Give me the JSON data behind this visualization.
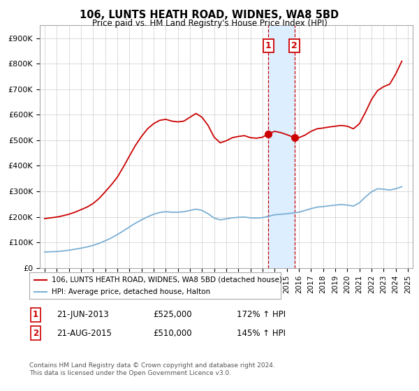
{
  "title": "106, LUNTS HEATH ROAD, WIDNES, WA8 5BD",
  "subtitle": "Price paid vs. HM Land Registry's House Price Index (HPI)",
  "ylabel_ticks": [
    "£0",
    "£100K",
    "£200K",
    "£300K",
    "£400K",
    "£500K",
    "£600K",
    "£700K",
    "£800K",
    "£900K"
  ],
  "ytick_values": [
    0,
    100000,
    200000,
    300000,
    400000,
    500000,
    600000,
    700000,
    800000,
    900000
  ],
  "ylim": [
    0,
    950000
  ],
  "xlim_start": 1994.6,
  "xlim_end": 2025.4,
  "legend_line1": "106, LUNTS HEATH ROAD, WIDNES, WA8 5BD (detached house)",
  "legend_line2": "HPI: Average price, detached house, Halton",
  "sale1_label": "1",
  "sale1_date": "21-JUN-2013",
  "sale1_price": "£525,000",
  "sale1_hpi": "172% ↑ HPI",
  "sale2_label": "2",
  "sale2_date": "21-AUG-2015",
  "sale2_price": "£510,000",
  "sale2_hpi": "145% ↑ HPI",
  "sale1_x": 2013.47,
  "sale1_y": 525000,
  "sale2_x": 2015.64,
  "sale2_y": 510000,
  "red_color": "#cc0000",
  "blue_color": "#7bafd4",
  "highlight_color": "#ddeeff",
  "copyright_text": "Contains HM Land Registry data © Crown copyright and database right 2024.\nThis data is licensed under the Open Government Licence v3.0.",
  "red_line_data": {
    "x": [
      1995.0,
      1995.5,
      1996.0,
      1996.5,
      1997.0,
      1997.5,
      1998.0,
      1998.5,
      1999.0,
      1999.5,
      2000.0,
      2000.5,
      2001.0,
      2001.5,
      2002.0,
      2002.5,
      2003.0,
      2003.5,
      2004.0,
      2004.5,
      2005.0,
      2005.5,
      2006.0,
      2006.5,
      2007.0,
      2007.5,
      2008.0,
      2008.5,
      2009.0,
      2009.5,
      2010.0,
      2010.5,
      2011.0,
      2011.5,
      2012.0,
      2012.5,
      2013.0,
      2013.47,
      2014.0,
      2014.5,
      2015.0,
      2015.64,
      2016.0,
      2016.5,
      2017.0,
      2017.5,
      2018.0,
      2018.5,
      2019.0,
      2019.5,
      2020.0,
      2020.5,
      2021.0,
      2021.5,
      2022.0,
      2022.5,
      2023.0,
      2023.5,
      2024.0,
      2024.5
    ],
    "y": [
      193000,
      196000,
      199000,
      204000,
      210000,
      218000,
      228000,
      238000,
      252000,
      272000,
      298000,
      325000,
      355000,
      395000,
      438000,
      480000,
      515000,
      545000,
      565000,
      578000,
      582000,
      575000,
      572000,
      575000,
      590000,
      605000,
      590000,
      558000,
      512000,
      490000,
      498000,
      510000,
      515000,
      518000,
      510000,
      508000,
      512000,
      525000,
      535000,
      530000,
      522000,
      510000,
      510000,
      520000,
      535000,
      545000,
      548000,
      552000,
      555000,
      558000,
      555000,
      545000,
      565000,
      610000,
      660000,
      695000,
      710000,
      720000,
      760000,
      810000
    ]
  },
  "blue_line_data": {
    "x": [
      1995.0,
      1995.5,
      1996.0,
      1996.5,
      1997.0,
      1997.5,
      1998.0,
      1998.5,
      1999.0,
      1999.5,
      2000.0,
      2000.5,
      2001.0,
      2001.5,
      2002.0,
      2002.5,
      2003.0,
      2003.5,
      2004.0,
      2004.5,
      2005.0,
      2005.5,
      2006.0,
      2006.5,
      2007.0,
      2007.5,
      2008.0,
      2008.5,
      2009.0,
      2009.5,
      2010.0,
      2010.5,
      2011.0,
      2011.5,
      2012.0,
      2012.5,
      2013.0,
      2013.5,
      2014.0,
      2014.5,
      2015.0,
      2015.5,
      2016.0,
      2016.5,
      2017.0,
      2017.5,
      2018.0,
      2018.5,
      2019.0,
      2019.5,
      2020.0,
      2020.5,
      2021.0,
      2021.5,
      2022.0,
      2022.5,
      2023.0,
      2023.5,
      2024.0,
      2024.5
    ],
    "y": [
      62000,
      63000,
      64000,
      66000,
      69000,
      73000,
      77000,
      82000,
      88000,
      96000,
      106000,
      117000,
      130000,
      145000,
      160000,
      175000,
      188000,
      200000,
      210000,
      217000,
      220000,
      218000,
      218000,
      220000,
      225000,
      230000,
      225000,
      212000,
      195000,
      188000,
      192000,
      196000,
      198000,
      199000,
      196000,
      195000,
      197000,
      202000,
      208000,
      210000,
      212000,
      215000,
      218000,
      225000,
      232000,
      238000,
      240000,
      243000,
      246000,
      248000,
      246000,
      242000,
      255000,
      278000,
      298000,
      310000,
      308000,
      305000,
      310000,
      318000
    ]
  }
}
